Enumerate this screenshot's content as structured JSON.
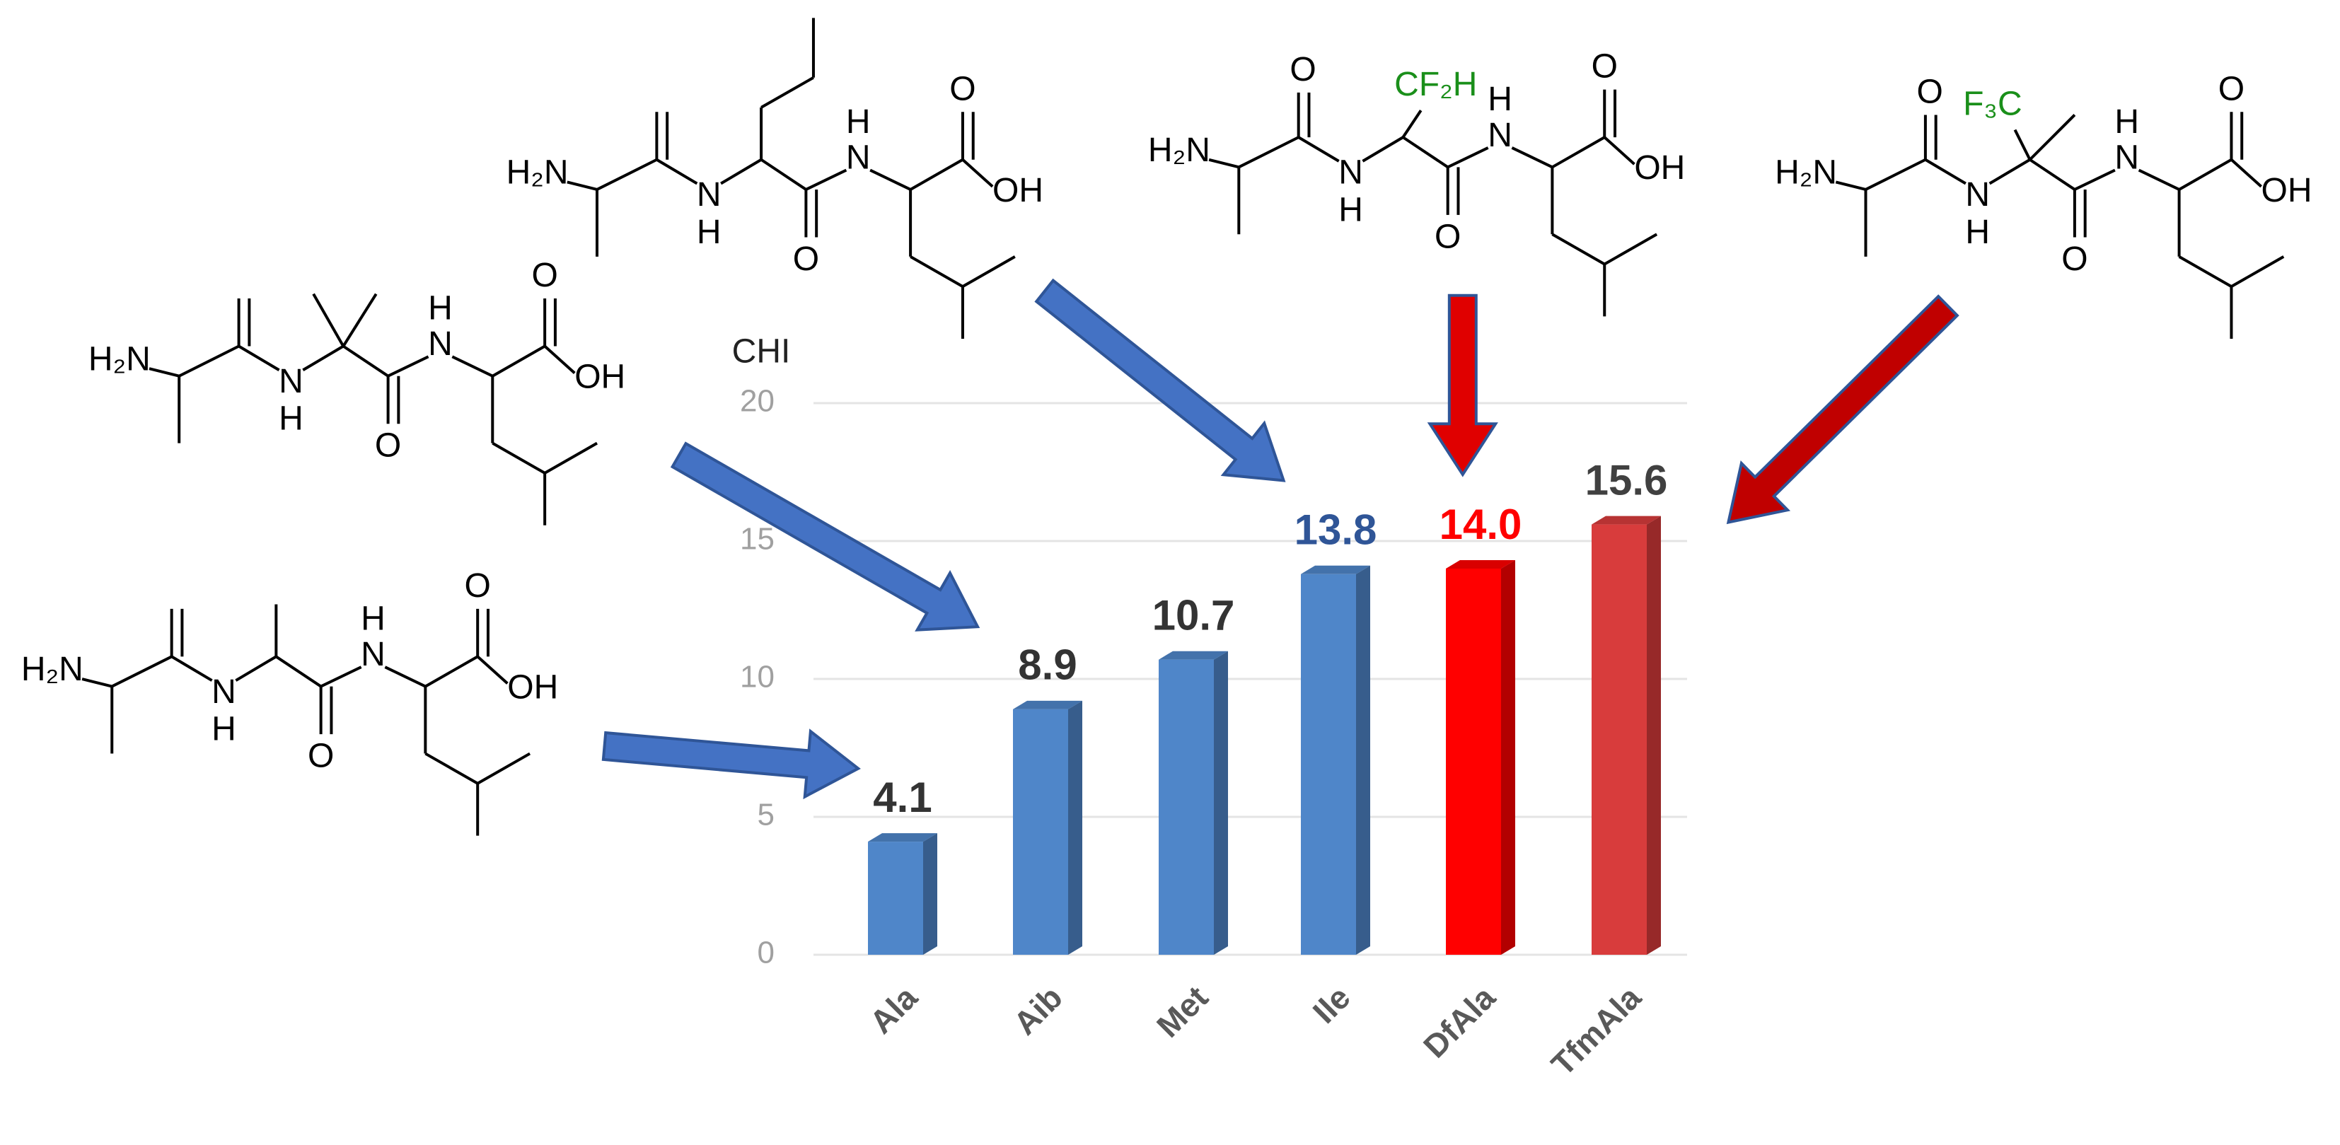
{
  "chart_data": {
    "type": "bar",
    "y_label": "CHI",
    "categories": [
      "Ala",
      "Aib",
      "Met",
      "Ile",
      "DfAla",
      "TfmAla"
    ],
    "values": [
      4.1,
      8.9,
      10.7,
      13.8,
      14.0,
      15.6
    ],
    "value_labels": [
      "4.1",
      "8.9",
      "10.7",
      "13.8",
      "14.0",
      "15.6"
    ],
    "colors": [
      "#4f86c9",
      "#4f86c9",
      "#4f86c9",
      "#4f86c9",
      "#ff0000",
      "#d83c3c"
    ],
    "value_label_colors": [
      "#333333",
      "#333333",
      "#333333",
      "#2f5597",
      "#ff0000",
      "#404040"
    ],
    "ylim": [
      0,
      20
    ],
    "yticks": [
      0,
      5,
      10,
      15,
      20
    ],
    "grid": true
  },
  "structures": [
    {
      "atoms": [
        "H₂N",
        "N",
        "H",
        "O",
        "N",
        "H",
        "O",
        "OH"
      ],
      "extra": []
    },
    {
      "atoms": [
        "H₂N",
        "N",
        "H",
        "O",
        "N",
        "H",
        "O",
        "OH"
      ],
      "extra": [
        "O",
        "CF₂H"
      ]
    },
    {
      "atoms": [
        "H₂N",
        "N",
        "H",
        "O",
        "N",
        "H",
        "O",
        "OH"
      ],
      "extra": [
        "O",
        "F₃C"
      ]
    },
    {
      "atoms": [
        "H₂N",
        "N",
        "H",
        "O",
        "N",
        "H",
        "O",
        "OH"
      ],
      "extra": []
    },
    {
      "atoms": [
        "H₂N",
        "N",
        "H",
        "O",
        "N",
        "H",
        "O",
        "OH"
      ],
      "extra": []
    }
  ]
}
